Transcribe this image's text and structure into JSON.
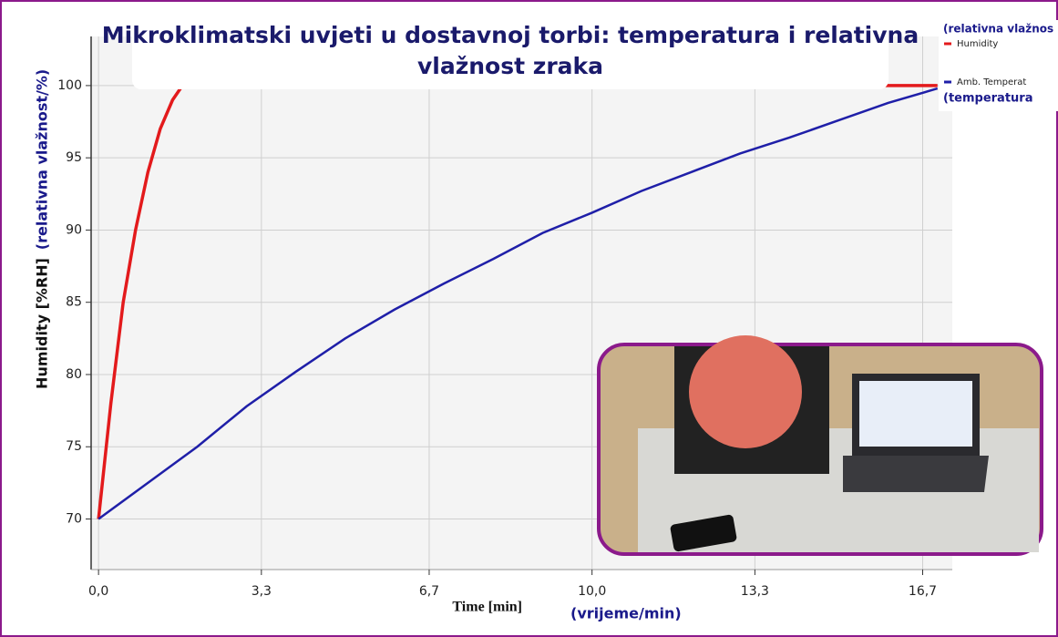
{
  "chart_data": {
    "type": "line",
    "title": [
      "Mikroklimatski uvjeti u dostavnoj torbi: temperatura i relativna",
      "vlažnost zraka"
    ],
    "y_label": "Humidity [%RH]",
    "y_label_note": "(relativna vlažnost/%)",
    "x_label": "Time [min]",
    "x_label_note": "(vrijeme/min)",
    "legend_notes": [
      "(relativna vlažnos",
      "(temperatura"
    ],
    "xlim": [
      -0.15,
      17.3
    ],
    "ylim": [
      66.5,
      103.4
    ],
    "xticks": [
      {
        "value": 0,
        "label": "0,0"
      },
      {
        "value": 3.3,
        "label": "3,3"
      },
      {
        "value": 6.7,
        "label": "6,7"
      },
      {
        "value": 10,
        "label": "10,0"
      },
      {
        "value": 13.3,
        "label": "13,3"
      },
      {
        "value": 16.7,
        "label": "16,7"
      }
    ],
    "yticks": [
      70,
      75,
      80,
      85,
      90,
      95,
      100
    ],
    "grid": true,
    "legend": "top-right",
    "series": [
      {
        "name": "Humidity",
        "color": "#e31a1c",
        "x": [
          0,
          0.25,
          0.5,
          0.75,
          1.0,
          1.25,
          1.5,
          1.7,
          17.0
        ],
        "values": [
          70,
          78,
          85,
          90,
          94,
          97,
          99,
          100,
          100
        ]
      },
      {
        "name": "Amb. Temperat",
        "color": "#1f1fa8",
        "x": [
          0,
          1,
          2,
          3,
          4,
          5,
          6,
          7,
          8,
          9,
          10,
          11,
          12,
          13,
          14,
          15,
          16,
          17
        ],
        "values": [
          70,
          72.5,
          75,
          77.8,
          80.2,
          82.5,
          84.5,
          86.3,
          88,
          89.8,
          91.2,
          92.7,
          94,
          95.3,
          96.4,
          97.6,
          98.8,
          99.8
        ]
      }
    ]
  }
}
